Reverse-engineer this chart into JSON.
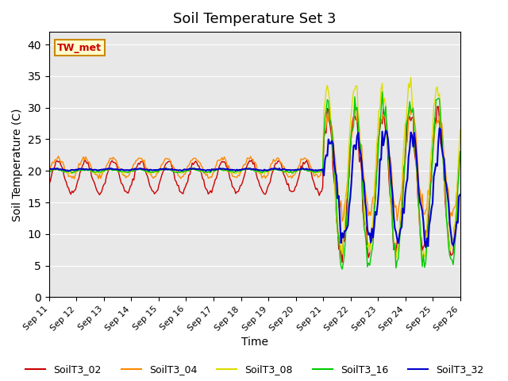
{
  "title": "Soil Temperature Set 3",
  "xlabel": "Time",
  "ylabel": "Soil Temperature (C)",
  "ylim": [
    0,
    42
  ],
  "xlim": [
    0,
    15
  ],
  "annotation": "TW_met",
  "background_color": "#e8e8e8",
  "series_colors": {
    "SoilT3_02": "#cc0000",
    "SoilT3_04": "#ff8800",
    "SoilT3_08": "#dddd00",
    "SoilT3_16": "#00cc00",
    "SoilT3_32": "#0000cc"
  },
  "xtick_labels": [
    "Sep 11",
    "Sep 12",
    "Sep 13",
    "Sep 14",
    "Sep 15",
    "Sep 16",
    "Sep 17",
    "Sep 18",
    "Sep 19",
    "Sep 20",
    "Sep 21",
    "Sep 22",
    "Sep 23",
    "Sep 24",
    "Sep 25",
    "Sep 26"
  ],
  "ytick_vals": [
    0,
    5,
    10,
    15,
    20,
    25,
    30,
    35,
    40
  ]
}
